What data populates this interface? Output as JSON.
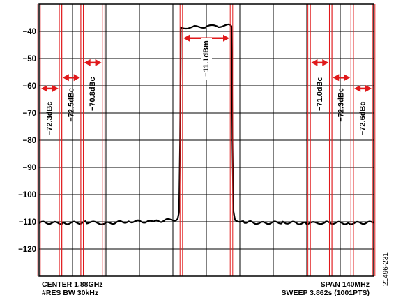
{
  "chart_data": {
    "type": "line",
    "ylim": [
      -130,
      -30
    ],
    "yticks": [
      "−40",
      "−50",
      "−60",
      "−70",
      "−80",
      "−90",
      "−100",
      "−110",
      "−120"
    ],
    "ytick_values": [
      -40,
      -50,
      -60,
      -70,
      -80,
      -90,
      -100,
      -110,
      -120
    ],
    "xlim": [
      -70,
      70
    ],
    "x_unit": "MHz offset from center",
    "grid": true,
    "series": [
      {
        "color": "#000000",
        "x": [
          -70,
          -60,
          -50,
          -42,
          -32,
          -22,
          -16,
          -12,
          -11.4,
          -11,
          -10.8,
          -10.7,
          -10,
          -5,
          0,
          5,
          10,
          10.5,
          10.7,
          10.9,
          11.3,
          12,
          16,
          22,
          32,
          42,
          50,
          60,
          70
        ],
        "y": [
          -110.3,
          -110.5,
          -110.2,
          -110.6,
          -109.8,
          -110.0,
          -109.4,
          -109.0,
          -106.5,
          -80,
          -55,
          -38.5,
          -38.6,
          -38.4,
          -38.2,
          -38.0,
          -37.8,
          -38.5,
          -55,
          -80,
          -106,
          -109.3,
          -110.0,
          -110.5,
          -110.2,
          -110.6,
          -110.3,
          -110.5,
          -110.3
        ]
      }
    ],
    "channels": [
      {
        "label": "−72.3dBc",
        "left": -70.0,
        "right": -61.0,
        "arrow_y": -61,
        "text_y": -72
      },
      {
        "label": "−72.5dBc",
        "left": -61.0,
        "right": -52.0,
        "arrow_y": -57,
        "text_y": -67
      },
      {
        "label": "−70.8dBc",
        "left": -52.0,
        "right": -43.0,
        "arrow_y": -51.5,
        "text_y": -63
      },
      {
        "label": "−11.1dBm",
        "left": -10.5,
        "right": 10.5,
        "arrow_y": -42.5,
        "text_y": -50,
        "label_bg": true
      },
      {
        "label": "−71.0dBc",
        "left": 43.0,
        "right": 52.0,
        "arrow_y": -51.5,
        "text_y": -63
      },
      {
        "label": "−72.3dBc",
        "left": 52.0,
        "right": 61.0,
        "arrow_y": -57,
        "text_y": -67
      },
      {
        "label": "−72.6dBc",
        "left": 61.0,
        "right": 70.0,
        "arrow_y": -61,
        "text_y": -72
      }
    ]
  },
  "footer": {
    "center": "CENTER 1.88GHz",
    "rbw": "#RES BW 30kHz",
    "span": "SPAN 140MHz",
    "sweep": "SWEEP 3.862s (1001PTS)"
  },
  "figure_id": "21496-231",
  "colors": {
    "trace": "#000000",
    "marker": "#e0191b",
    "grid": "#000000"
  }
}
